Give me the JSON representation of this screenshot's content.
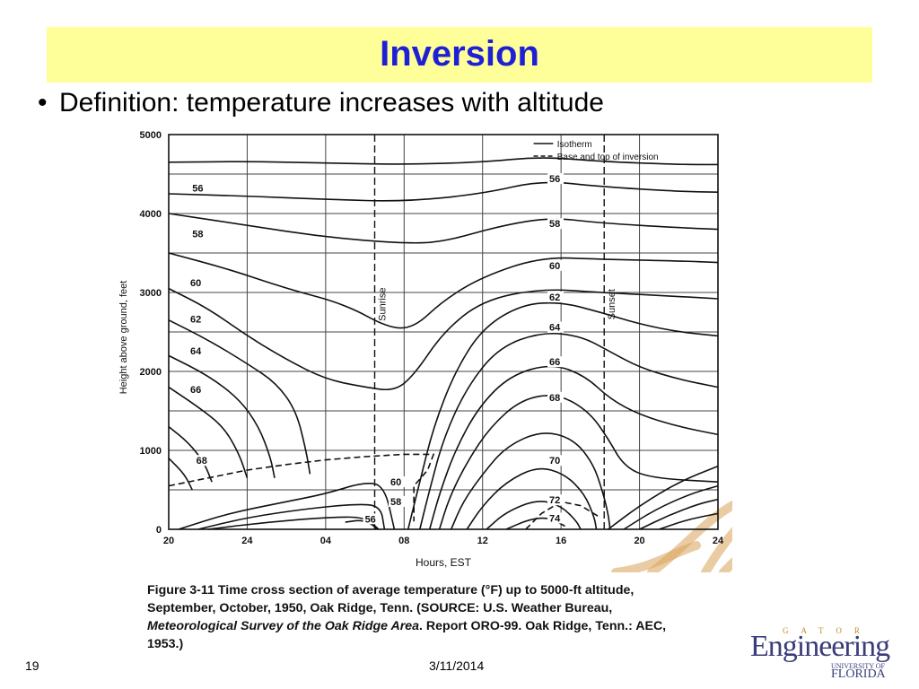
{
  "slide": {
    "title": "Inversion",
    "bullet": "Definition: temperature increases with altitude",
    "page_number": "19",
    "date": "3/11/2014",
    "logo": {
      "main": "Engineering",
      "top": "GATOR",
      "sub1": "UNIVERSITY OF",
      "sub2": "FLORIDA"
    },
    "colors": {
      "title": "#1f1fd6",
      "title_bar": "#ffff99",
      "logo": "#3a3d7a",
      "gator_art": "#d9a35a"
    }
  },
  "caption": {
    "lead": "Figure 3-11   Time cross section of average temperature (°F) up to 5000-ft altitude, September, October, 1950, Oak Ridge, Tenn. (SOURCE: U.S. Weather Bureau, ",
    "italic": "Meteorological Survey of the Oak Ridge Area",
    "tail": ". Report ORO-99. Oak Ridge, Tenn.: AEC, 1953.)"
  },
  "chart_data": {
    "type": "contour",
    "xlabel": "Hours, EST",
    "ylabel": "Height above ground, feet",
    "x_ticks": [
      "20",
      "24",
      "04",
      "08",
      "12",
      "16",
      "20",
      "24"
    ],
    "x_range_hours": [
      0,
      28
    ],
    "ylim": [
      0,
      5000
    ],
    "y_ticks": [
      0,
      1000,
      2000,
      3000,
      4000,
      5000
    ],
    "grid": true,
    "legend": {
      "placement": "top-right",
      "entries": [
        {
          "label": "Isotherm",
          "style": "solid"
        },
        {
          "label": "Base and top of inversion",
          "style": "dashed"
        }
      ]
    },
    "events": [
      {
        "label": "Sunrise",
        "hour": 10.5
      },
      {
        "label": "Sunset",
        "hour": 22.2
      }
    ],
    "isotherm_labels": [
      "56",
      "58",
      "60",
      "62",
      "64",
      "66",
      "68",
      "56",
      "58",
      "60",
      "62",
      "64",
      "66",
      "68",
      "70",
      "72",
      "74",
      "60",
      "58",
      "56"
    ],
    "isotherms_at_start": [
      {
        "temp": 56,
        "height_ft": 4250
      },
      {
        "temp": 58,
        "height_ft": 3650
      },
      {
        "temp": 60,
        "height_ft": 3000
      },
      {
        "temp": 62,
        "height_ft": 2600
      },
      {
        "temp": 64,
        "height_ft": 2200
      },
      {
        "temp": 66,
        "height_ft": 1750
      },
      {
        "temp": 68,
        "height_ft": 850
      }
    ],
    "isotherms_afternoon": [
      {
        "temp": 56,
        "hour": 19.5,
        "height_ft": 4400
      },
      {
        "temp": 58,
        "hour": 19.5,
        "height_ft": 3850
      },
      {
        "temp": 60,
        "hour": 19.5,
        "height_ft": 3300
      },
      {
        "temp": 62,
        "hour": 19.5,
        "height_ft": 2900
      },
      {
        "temp": 64,
        "hour": 19.5,
        "height_ft": 2500
      },
      {
        "temp": 66,
        "hour": 19.5,
        "height_ft": 2050
      },
      {
        "temp": 68,
        "hour": 19.5,
        "height_ft": 1650
      },
      {
        "temp": 70,
        "hour": 19.5,
        "height_ft": 850
      },
      {
        "temp": 72,
        "hour": 19.5,
        "height_ft": 350
      },
      {
        "temp": 74,
        "hour": 19.5,
        "height_ft": 100
      }
    ],
    "isotherms_morning_low": [
      {
        "temp": 60,
        "hour": 11,
        "height_ft": 550
      },
      {
        "temp": 58,
        "hour": 11,
        "height_ft": 300
      },
      {
        "temp": 56,
        "hour": 10,
        "height_ft": 90
      }
    ],
    "inversion_top_ft": [
      {
        "hour": 0,
        "height_ft": 550
      },
      {
        "hour": 4,
        "height_ft": 750
      },
      {
        "hour": 8,
        "height_ft": 880
      },
      {
        "hour": 12,
        "height_ft": 950
      },
      {
        "hour": 13.5,
        "height_ft": 950
      }
    ]
  }
}
